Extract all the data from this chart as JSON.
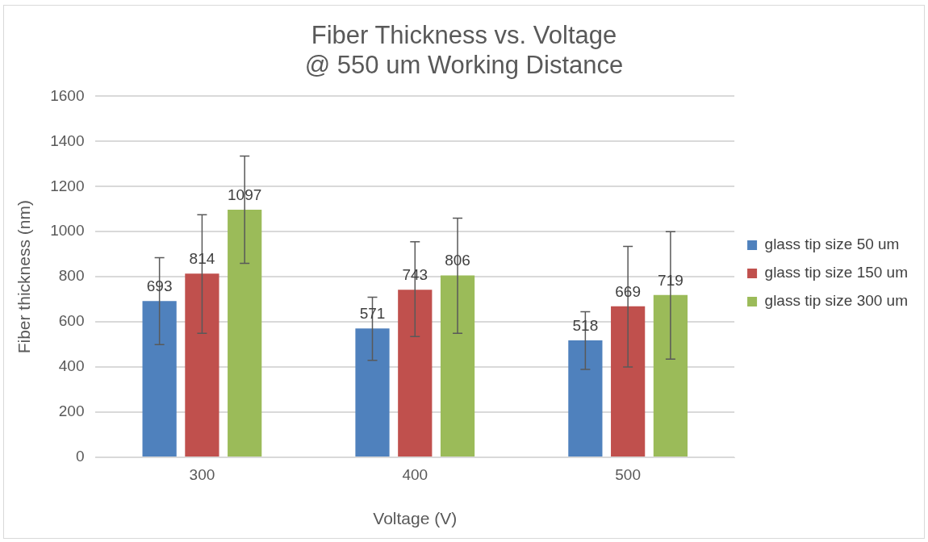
{
  "chart_data": {
    "type": "bar",
    "title": [
      "Fiber Thickness vs. Voltage",
      "@ 550 um Working Distance"
    ],
    "xlabel": "Voltage (V)",
    "ylabel": "Fiber thickness (nm)",
    "categories": [
      "300",
      "400",
      "500"
    ],
    "series": [
      {
        "name": "glass tip size 50 um",
        "color": "#4f81bd",
        "values": [
          693,
          571,
          518
        ],
        "errors": [
          [
            500,
            885
          ],
          [
            430,
            710
          ],
          [
            390,
            645
          ]
        ]
      },
      {
        "name": "glass tip size 150 um",
        "color": "#c0504d",
        "values": [
          814,
          743,
          669
        ],
        "errors": [
          [
            550,
            1075
          ],
          [
            535,
            955
          ],
          [
            400,
            935
          ]
        ]
      },
      {
        "name": "glass tip size 300 um",
        "color": "#9bbb59",
        "values": [
          1097,
          806,
          719
        ],
        "errors": [
          [
            860,
            1335
          ],
          [
            550,
            1060
          ],
          [
            435,
            1000
          ]
        ]
      }
    ],
    "ylim": [
      0,
      1600
    ],
    "yticks": [
      0,
      200,
      400,
      600,
      800,
      1000,
      1200,
      1400,
      1600
    ],
    "grid": "y",
    "legend": "right",
    "data_labels": true
  }
}
